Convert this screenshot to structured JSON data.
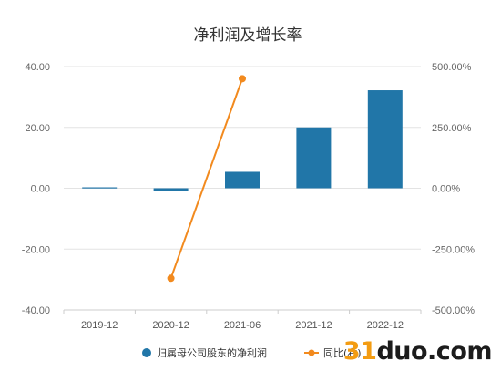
{
  "watermark": {
    "digits": "31",
    "rest": "duo.com"
  },
  "colors": {
    "bar": "#2176a8",
    "line": "#f28a1e",
    "grid": "#e3e3e3",
    "axis": "#cccccc"
  },
  "chart_data": {
    "type": "bar+line",
    "title": "净利润及增长率",
    "categories": [
      "2019-12",
      "2020-12",
      "2021-06",
      "2021-12",
      "2022-12"
    ],
    "series": [
      {
        "name": "归属母公司股东的净利润",
        "type": "bar",
        "axis": "left",
        "values": [
          0.3,
          -0.9,
          5.4,
          20.0,
          32.2
        ]
      },
      {
        "name": "同比(右)",
        "type": "line",
        "axis": "right",
        "values": [
          null,
          -370,
          450,
          null,
          null
        ]
      }
    ],
    "y_left": {
      "min": -40,
      "max": 40,
      "ticks": [
        "-40.00",
        "-20.00",
        "0.00",
        "20.00",
        "40.00"
      ]
    },
    "y_right": {
      "min": -500,
      "max": 500,
      "ticks": [
        "-500.00%",
        "-250.00%",
        "0.00%",
        "250.00%",
        "500.00%"
      ]
    },
    "grid": true,
    "legend_position": "bottom-right"
  }
}
